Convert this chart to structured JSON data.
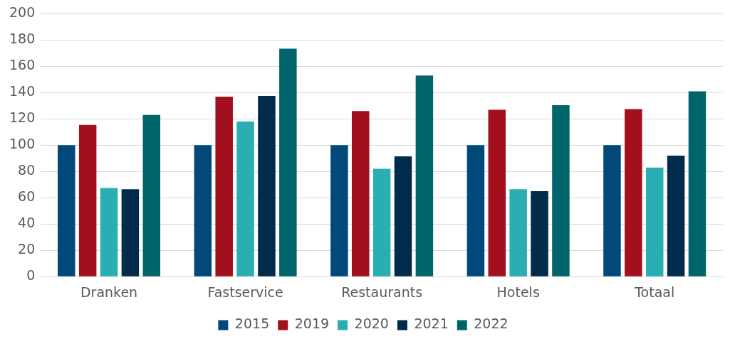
{
  "chart_data": {
    "type": "bar",
    "categories": [
      "Dranken",
      "Fastservice",
      "Restaurants",
      "Hotels",
      "Totaal"
    ],
    "series": [
      {
        "name": "2015",
        "color": "#00497a",
        "values": [
          100,
          100,
          100,
          100,
          100
        ]
      },
      {
        "name": "2019",
        "color": "#a20f1d",
        "values": [
          115.5,
          137,
          126,
          127,
          127.5
        ]
      },
      {
        "name": "2020",
        "color": "#2aaeb1",
        "values": [
          67.5,
          118,
          82,
          66.5,
          83
        ]
      },
      {
        "name": "2021",
        "color": "#002b4a",
        "values": [
          66.5,
          137.5,
          91.5,
          65,
          92
        ]
      },
      {
        "name": "2022",
        "color": "#00656b",
        "values": [
          123,
          173.5,
          153,
          130.5,
          141
        ]
      }
    ],
    "ylim": [
      0,
      200
    ],
    "yticks": [
      0,
      20,
      40,
      60,
      80,
      100,
      120,
      140,
      160,
      180,
      200
    ],
    "grid": "y",
    "legend": "bottom"
  }
}
